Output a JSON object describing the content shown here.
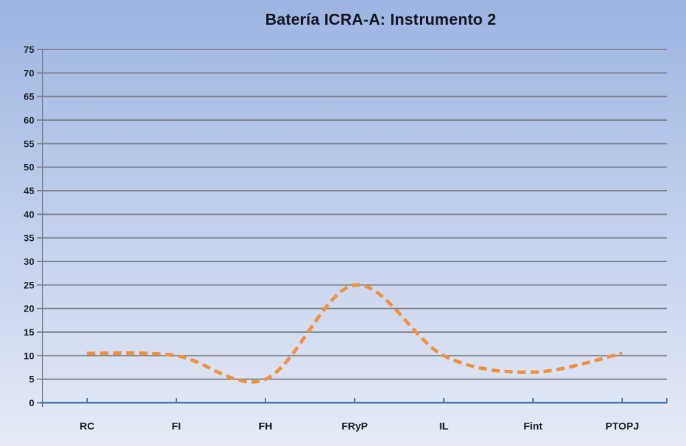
{
  "chart_data": {
    "type": "line",
    "title": "Batería ICRA-A: Instrumento 2",
    "categories": [
      "RC",
      "FI",
      "FH",
      "FRyP",
      "IL",
      "Fint",
      "PTOPJ"
    ],
    "series": [
      {
        "name": "Instrumento 2",
        "values": [
          10.5,
          10,
          5,
          25,
          10,
          6.5,
          10.5
        ],
        "color": "#f0913f",
        "line_style": "dashed",
        "smooth": true
      }
    ],
    "xlabel": "",
    "ylabel": "",
    "ylim": [
      0,
      75
    ],
    "ytick_step": 5,
    "yticks": [
      0,
      5,
      10,
      15,
      20,
      25,
      30,
      35,
      40,
      45,
      50,
      55,
      60,
      65,
      70,
      75
    ],
    "grid": true,
    "legend": "none"
  },
  "style": {
    "background_top": "#9db4e2",
    "background_bottom": "#e6ebf6",
    "gridline_color": "#7e848c",
    "axis_line_color": "#4a7ab5",
    "tick_color": "#7e848c",
    "text_color": "#1c1f29",
    "title_color": "#14161e",
    "series_color": "#f0913f"
  }
}
